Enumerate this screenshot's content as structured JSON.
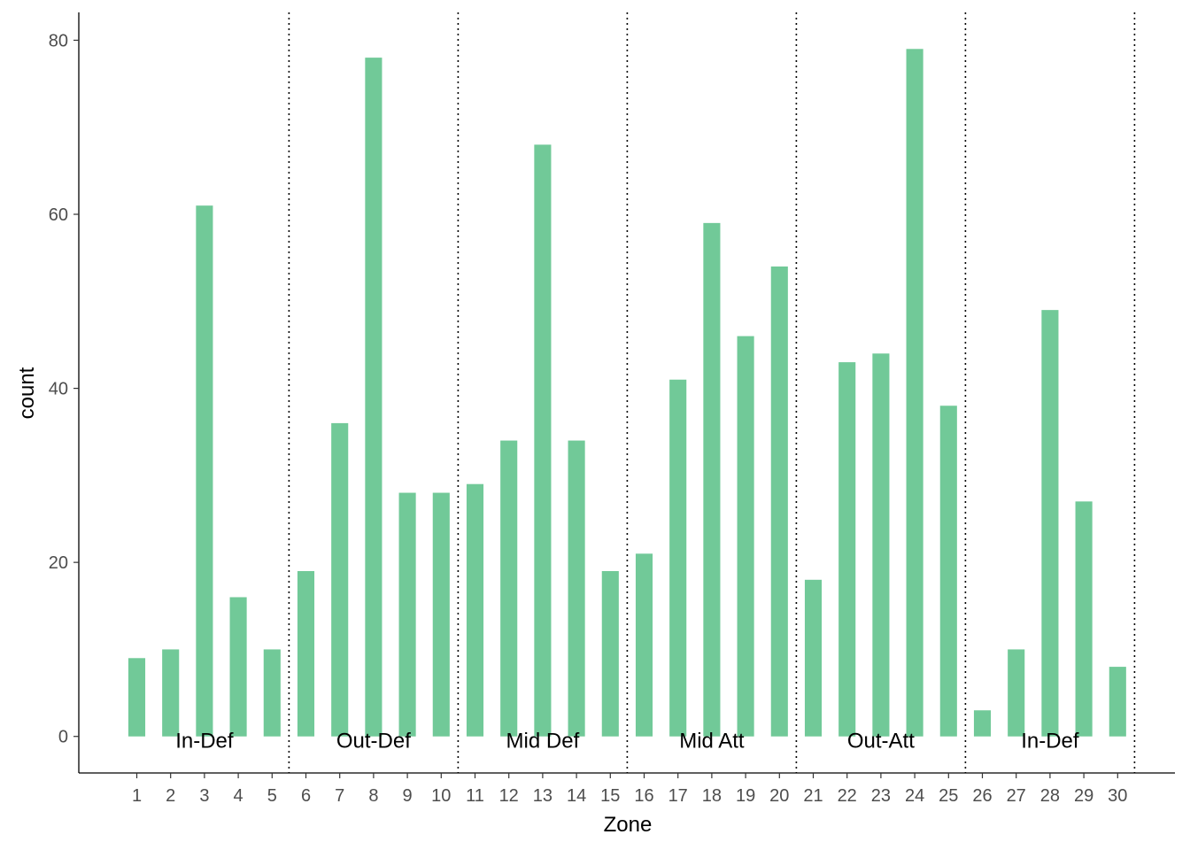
{
  "chart_data": {
    "type": "bar",
    "xlabel": "Zone",
    "ylabel": "count",
    "categories": [
      "1",
      "2",
      "3",
      "4",
      "5",
      "6",
      "7",
      "8",
      "9",
      "10",
      "11",
      "12",
      "13",
      "14",
      "15",
      "16",
      "17",
      "18",
      "19",
      "20",
      "21",
      "22",
      "23",
      "24",
      "25",
      "26",
      "27",
      "28",
      "29",
      "30"
    ],
    "values": [
      9,
      10,
      61,
      16,
      10,
      19,
      36,
      78,
      28,
      28,
      29,
      34,
      68,
      34,
      19,
      21,
      41,
      59,
      46,
      54,
      18,
      43,
      44,
      79,
      38,
      3,
      10,
      49,
      27,
      8
    ],
    "ylim": [
      -4.2,
      83.2
    ],
    "yticks": [
      0,
      20,
      40,
      60,
      80
    ],
    "grid": false,
    "bar_color": "#71C998",
    "zone_groups": [
      {
        "label": "In-Def",
        "zones": [
          1,
          5
        ]
      },
      {
        "label": "Out-Def",
        "zones": [
          6,
          10
        ]
      },
      {
        "label": "Mid Def",
        "zones": [
          11,
          15
        ]
      },
      {
        "label": "Mid Att",
        "zones": [
          16,
          20
        ]
      },
      {
        "label": "Out-Att",
        "zones": [
          21,
          25
        ]
      },
      {
        "label": "In-Def",
        "zones": [
          26,
          30
        ]
      }
    ],
    "dividers_after_zones": [
      5,
      10,
      15,
      20,
      25,
      30
    ]
  }
}
